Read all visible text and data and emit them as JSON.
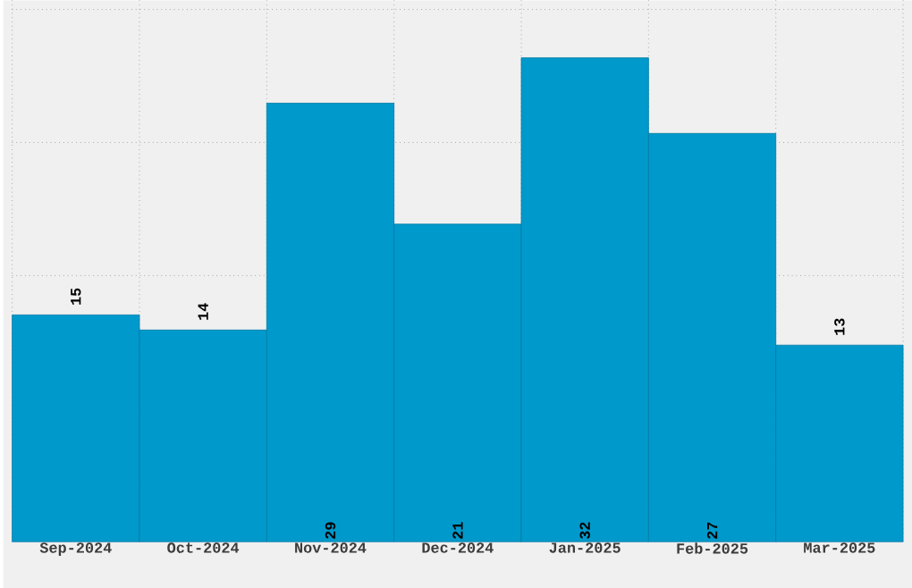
{
  "chart_data": {
    "type": "bar",
    "categories": [
      "Sep-2024",
      "Oct-2024",
      "Nov-2024",
      "Dec-2024",
      "Jan-2025",
      "Feb-2025",
      "Mar-2025"
    ],
    "values": [
      15,
      14,
      29,
      21,
      32,
      27,
      13
    ],
    "color": "#0099cc",
    "data_labels": true,
    "grid": true,
    "ylim": [
      0,
      35.8
    ],
    "yticks": [
      {
        "value": 8.8,
        "label": null
      },
      {
        "value": 17.6,
        "label": null
      },
      {
        "value": 26.4,
        "label": null
      },
      {
        "value": 35.2,
        "label": null
      }
    ]
  }
}
